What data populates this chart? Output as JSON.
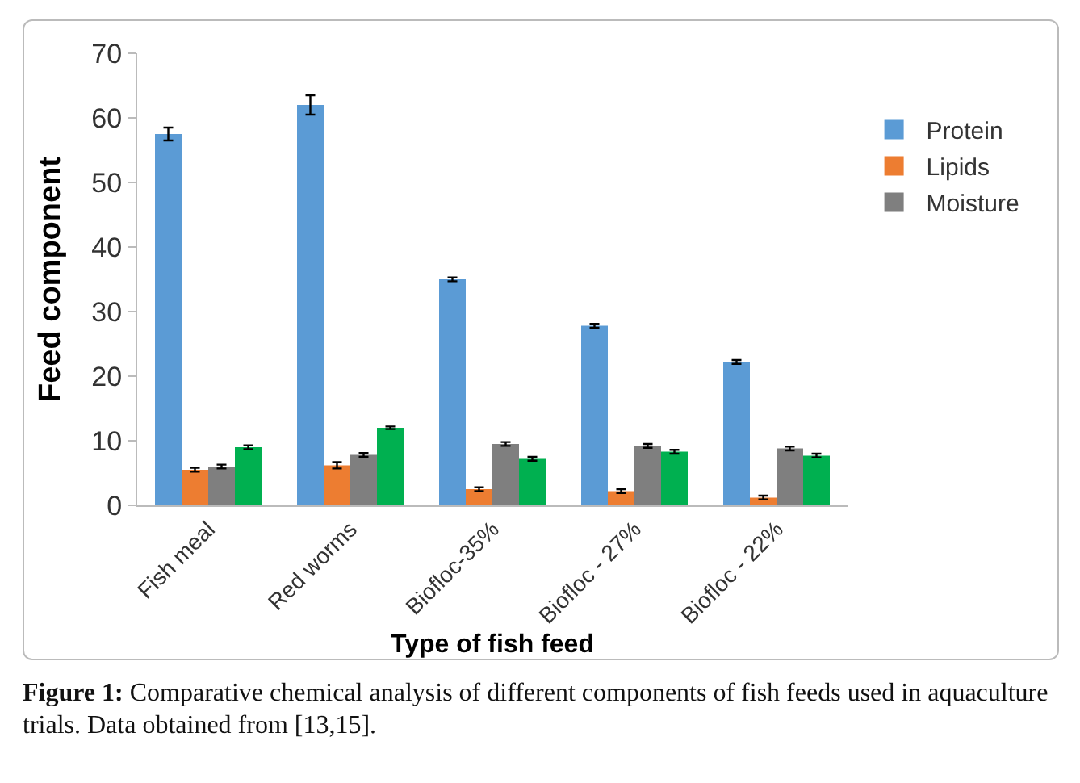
{
  "chart_data": {
    "type": "bar",
    "xlabel": "Type of fish feed",
    "ylabel": "Feed component",
    "categories": [
      "Fish meal",
      "Red worms",
      "Biofloc-35%",
      "Biofloc - 27%",
      "Biofloc - 22%"
    ],
    "series": [
      {
        "name": "Protein",
        "color": "#5b9bd5",
        "values": [
          57.5,
          62,
          35,
          27.8,
          22.2
        ],
        "errors": [
          1,
          1.5,
          0.3,
          0.3,
          0.3
        ]
      },
      {
        "name": "Lipids",
        "color": "#ed7d31",
        "values": [
          5.5,
          6.2,
          2.5,
          2.2,
          1.2
        ],
        "errors": [
          0.3,
          0.5,
          0.3,
          0.3,
          0.3
        ]
      },
      {
        "name": "Moisture",
        "color": "#7f7f7f",
        "values": [
          6,
          7.8,
          9.5,
          9.2,
          8.8
        ],
        "errors": [
          0.3,
          0.3,
          0.3,
          0.3,
          0.3
        ]
      },
      {
        "color": "#00b050",
        "values": [
          9,
          12,
          7.2,
          8.3,
          7.7
        ],
        "errors": [
          0.3,
          0.2,
          0.3,
          0.3,
          0.3
        ]
      }
    ],
    "ylim": [
      0,
      70
    ],
    "yticks": [
      0,
      10,
      20,
      30,
      40,
      50,
      60,
      70
    ],
    "grid": false,
    "legend": "right",
    "annotations": [
      "Figure 1: Comparative chemical analysis of different components of fish feeds used in aquaculture trials. Data obtained from [13,15]."
    ]
  }
}
